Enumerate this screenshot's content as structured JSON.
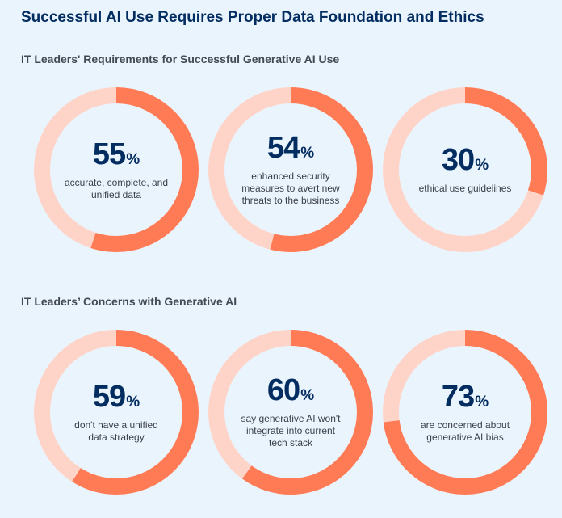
{
  "title": "Successful AI Use Requires Proper Data Foundation and Ethics",
  "colors": {
    "accent": "#ff7b56",
    "track": "#ffd4c8",
    "text_dark": "#032d60",
    "background": "#eaf4fd"
  },
  "chart_data": [
    {
      "type": "pie",
      "variant": "donut",
      "title": "IT Leaders' Requirements for Successful Generative AI Use",
      "unit": "%",
      "items": [
        {
          "value": 55,
          "label": "accurate, complete, and unified data"
        },
        {
          "value": 54,
          "label": "enhanced security measures to avert new threats to the business"
        },
        {
          "value": 30,
          "label": "ethical use guidelines"
        }
      ]
    },
    {
      "type": "pie",
      "variant": "donut",
      "title": "IT Leaders’ Concerns with Generative AI",
      "unit": "%",
      "items": [
        {
          "value": 59,
          "label": "don't have a unified data strategy"
        },
        {
          "value": 60,
          "label": "say generative AI won't integrate into current tech stack"
        },
        {
          "value": 73,
          "label": "are concerned about generative AI bias"
        }
      ]
    }
  ]
}
